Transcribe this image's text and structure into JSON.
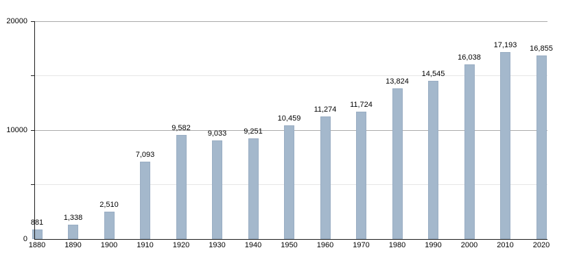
{
  "chart_data": {
    "type": "bar",
    "title": "",
    "xlabel": "",
    "ylabel": "",
    "categories": [
      "1880",
      "1890",
      "1900",
      "1910",
      "1920",
      "1930",
      "1940",
      "1950",
      "1960",
      "1970",
      "1980",
      "1990",
      "2000",
      "2010",
      "2020"
    ],
    "values": [
      881,
      1338,
      2510,
      7093,
      9582,
      9033,
      9251,
      10459,
      11274,
      11724,
      13824,
      14545,
      16038,
      17193,
      16855
    ],
    "value_labels": [
      "881",
      "1,338",
      "2,510",
      "7,093",
      "9,582",
      "9,033",
      "9,251",
      "10,459",
      "11,274",
      "11,724",
      "13,824",
      "14,545",
      "16,038",
      "17,193",
      "16,855"
    ],
    "ylim": [
      0,
      20000
    ],
    "yticks": [
      {
        "value": 0,
        "label": "0",
        "grid": null
      },
      {
        "value": 5000,
        "label": "",
        "grid": "minor"
      },
      {
        "value": 10000,
        "label": "10000",
        "grid": "major"
      },
      {
        "value": 15000,
        "label": "",
        "grid": "minor"
      },
      {
        "value": 20000,
        "label": "20000",
        "grid": "major"
      }
    ],
    "grid": "horizontal",
    "legend_position": "none",
    "colors": {
      "bar_fill": "#a4b8cc",
      "grid_major": "#a9a9a9",
      "grid_minor": "#e6e6e6",
      "axis": "#1a1a1a",
      "text": "#000000",
      "background": "#ffffff"
    }
  }
}
